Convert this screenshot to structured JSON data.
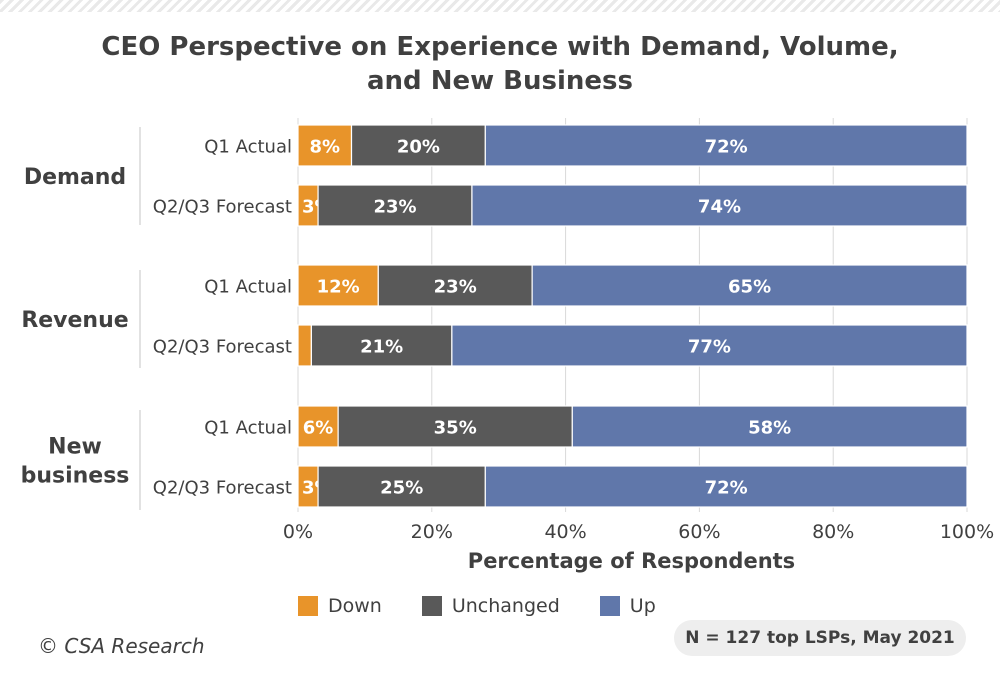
{
  "chart_data": {
    "type": "bar",
    "orientation": "horizontal",
    "stacked": true,
    "title_lines": [
      "CEO Perspective on Experience with Demand, Volume,",
      "and New Business"
    ],
    "xlabel": "Percentage of Respondents",
    "ylabel": "",
    "xlim": [
      0,
      100
    ],
    "x_ticks": [
      "0%",
      "20%",
      "40%",
      "60%",
      "80%",
      "100%"
    ],
    "grid": "vertical",
    "legend_position": "bottom",
    "groups": [
      {
        "label": "Demand",
        "label_lines": [
          "Demand"
        ]
      },
      {
        "label": "Revenue",
        "label_lines": [
          "Revenue"
        ]
      },
      {
        "label": "New business",
        "label_lines": [
          "New",
          "business"
        ]
      }
    ],
    "rows": [
      {
        "group": 0,
        "label": "Q1 Actual",
        "values": [
          8,
          20,
          72
        ]
      },
      {
        "group": 0,
        "label": "Q2/Q3 Forecast",
        "values": [
          3,
          23,
          74
        ]
      },
      {
        "group": 1,
        "label": "Q1 Actual",
        "values": [
          12,
          23,
          65
        ]
      },
      {
        "group": 1,
        "label": "Q2/Q3 Forecast",
        "values": [
          2,
          21,
          77
        ]
      },
      {
        "group": 2,
        "label": "Q1 Actual",
        "values": [
          6,
          35,
          58
        ]
      },
      {
        "group": 2,
        "label": "Q2/Q3 Forecast",
        "values": [
          3,
          25,
          72
        ]
      }
    ],
    "series": [
      {
        "name": "Down",
        "color": "#e8942a"
      },
      {
        "name": "Unchanged",
        "color": "#595959"
      },
      {
        "name": "Up",
        "color": "#6077aa"
      }
    ]
  },
  "footer": {
    "copyright": "© CSA Research",
    "note": "N = 127 top LSPs, May 2021"
  }
}
